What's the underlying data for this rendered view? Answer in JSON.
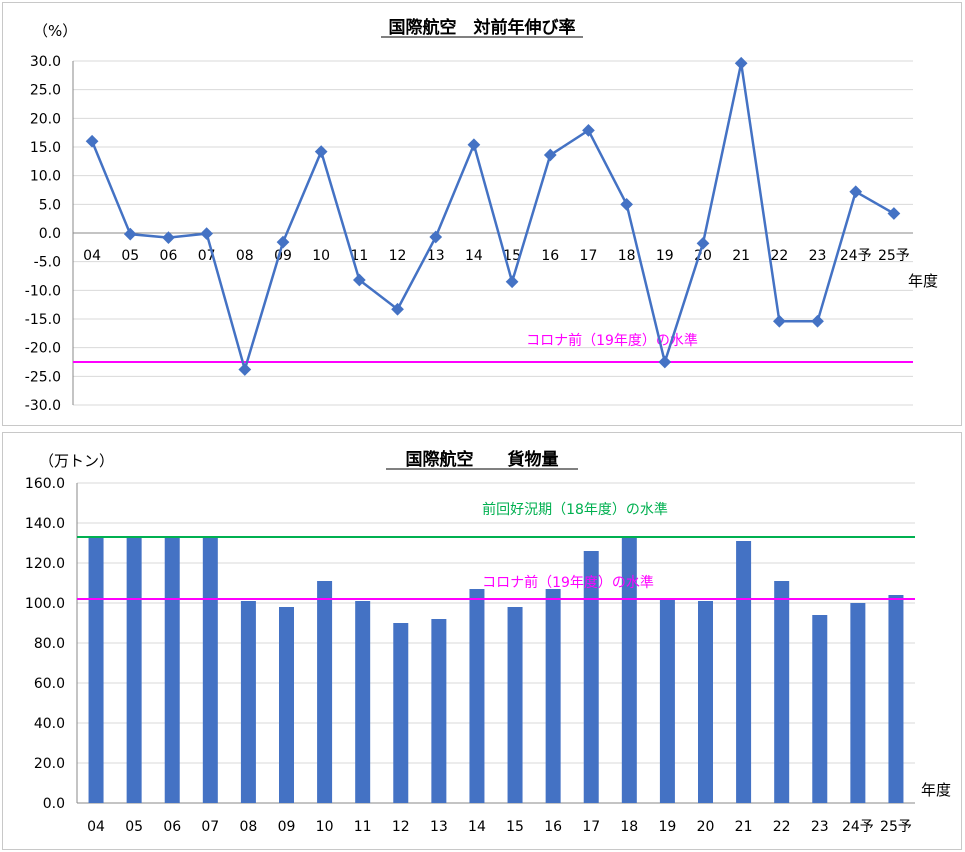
{
  "chart_data": [
    {
      "type": "line",
      "title": "国際航空　対前年伸び率",
      "ylabel": "（%）",
      "xlabel": "年度",
      "ylim": [
        -30,
        30
      ],
      "yticks": [
        "30.0",
        "25.0",
        "20.0",
        "15.0",
        "10.0",
        "5.0",
        "0.0",
        "-5.0",
        "-10.0",
        "-15.0",
        "-20.0",
        "-25.0",
        "-30.0"
      ],
      "categories": [
        "04",
        "05",
        "06",
        "07",
        "08",
        "09",
        "10",
        "11",
        "12",
        "13",
        "14",
        "15",
        "16",
        "17",
        "18",
        "19",
        "20",
        "21",
        "22",
        "23",
        "24予",
        "25予"
      ],
      "series": [
        {
          "values": [
            16.0,
            -0.2,
            -0.8,
            -0.1,
            -23.8,
            -1.6,
            14.2,
            -8.2,
            -13.3,
            -0.7,
            15.4,
            -8.5,
            13.6,
            17.9,
            5.0,
            -22.5,
            -1.8,
            29.6,
            -15.4,
            -15.4,
            7.2,
            3.4
          ]
        }
      ],
      "reference_lines": [
        {
          "label": "コロナ前（19年度）の水準",
          "value": -22.5
        }
      ],
      "grid": true,
      "colors": {
        "series": "#4472c4",
        "reference": "#ff00ff",
        "grid": "#d9d9d9"
      }
    },
    {
      "type": "bar",
      "title": "国際航空　　貨物量",
      "ylabel": "（万トン）",
      "xlabel": "年度",
      "ylim": [
        0,
        160
      ],
      "yticks": [
        "160.0",
        "140.0",
        "120.0",
        "100.0",
        "80.0",
        "60.0",
        "40.0",
        "20.0",
        "0.0"
      ],
      "categories": [
        "04",
        "05",
        "06",
        "07",
        "08",
        "09",
        "10",
        "11",
        "12",
        "13",
        "14",
        "15",
        "16",
        "17",
        "18",
        "19",
        "20",
        "21",
        "22",
        "23",
        "24予",
        "25予"
      ],
      "series": [
        {
          "values": [
            133,
            133,
            133,
            133,
            101,
            98,
            111,
            101,
            90,
            92,
            107,
            98,
            107,
            126,
            133,
            102,
            101,
            131,
            111,
            94,
            100,
            104
          ]
        }
      ],
      "reference_lines": [
        {
          "label": "前回好況期（18年度）の水準",
          "value": 133
        },
        {
          "label": "コロナ前（19年度）の水準",
          "value": 102
        }
      ],
      "grid": true,
      "colors": {
        "series": "#4472c4",
        "reference_1": "#00b050",
        "reference_2": "#ff00ff",
        "grid": "#d9d9d9"
      }
    }
  ]
}
